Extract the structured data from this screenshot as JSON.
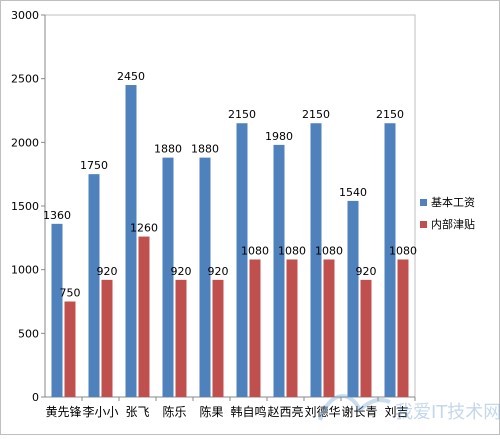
{
  "chart_data": {
    "type": "bar",
    "title": "",
    "xlabel": "",
    "ylabel": "",
    "ylim": [
      0,
      3000
    ],
    "yticks": [
      0,
      500,
      1000,
      1500,
      2000,
      2500,
      3000
    ],
    "grid": false,
    "legend_position": "right",
    "categories": [
      "黄先锋",
      "李小小",
      "张飞",
      "陈乐",
      "陈果",
      "韩自鸣",
      "赵西亮",
      "刘德华",
      "谢长青",
      "刘吉"
    ],
    "series": [
      {
        "name": "基本工资",
        "color": "#4f81bd",
        "values": [
          1360,
          1750,
          2450,
          1880,
          1880,
          2150,
          1980,
          2150,
          1540,
          2150
        ]
      },
      {
        "name": "内部津贴",
        "color": "#c0504d",
        "values": [
          750,
          920,
          1260,
          920,
          920,
          1080,
          1080,
          1080,
          920,
          1080
        ]
      }
    ]
  },
  "watermark": {
    "text": "我爱IT技术网",
    "icon": "bird-logo-icon"
  }
}
